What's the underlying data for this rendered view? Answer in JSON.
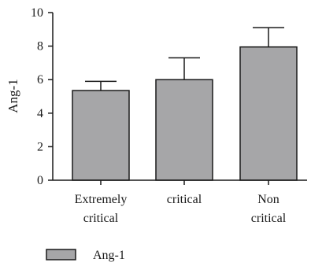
{
  "chart_data": {
    "type": "bar",
    "categories": [
      [
        "Extremely",
        "critical"
      ],
      [
        "critical"
      ],
      [
        "Non",
        "critical"
      ]
    ],
    "series": [
      {
        "name": "Ang-1",
        "values": [
          5.35,
          6.0,
          7.95
        ],
        "error_upper": [
          0.55,
          1.3,
          1.15
        ],
        "color": "#a6a6a8"
      }
    ],
    "xlabel": "",
    "ylabel": "Ang-1",
    "ylim": [
      0,
      10
    ],
    "yticks": [
      0,
      2,
      4,
      6,
      8,
      10
    ],
    "grid": false,
    "legend_position": "bottom-left"
  }
}
